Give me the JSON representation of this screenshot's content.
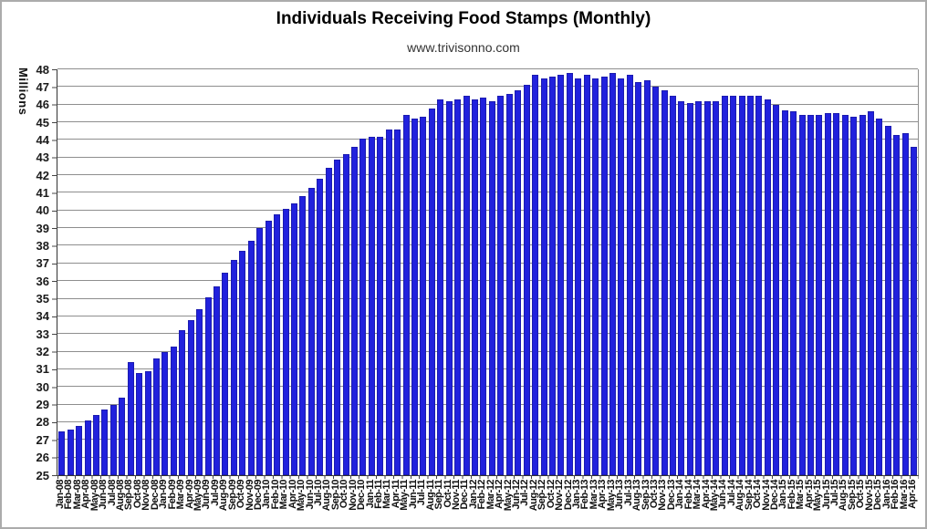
{
  "chart_data": {
    "type": "bar",
    "title": "Individuals Receiving Food Stamps (Monthly)",
    "subtitle": "www.trivisonno.com",
    "ylabel": "Millions",
    "xlabel": "",
    "ylim": [
      25,
      48
    ],
    "grid": true,
    "legend": "none",
    "bar_color": "#2121DD",
    "bar_border_color": "#1b1bb0",
    "gridline_color": "#8e8e8e",
    "axis_color": "#333333",
    "yticks": [
      25,
      26,
      27,
      28,
      29,
      30,
      31,
      32,
      33,
      34,
      35,
      36,
      37,
      38,
      39,
      40,
      41,
      42,
      43,
      44,
      45,
      46,
      47,
      48
    ],
    "categories": [
      "Jan-08",
      "Feb-08",
      "Mar-08",
      "Apr-08",
      "May-08",
      "Jun-08",
      "Jul-08",
      "Aug-08",
      "Sep-08",
      "Oct-08",
      "Nov-08",
      "Dec-08",
      "Jan-09",
      "Feb-09",
      "Mar-09",
      "Apr-09",
      "May-09",
      "Jun-09",
      "Jul-09",
      "Aug-09",
      "Sep-09",
      "Oct-09",
      "Nov-09",
      "Dec-09",
      "Jan-10",
      "Feb-10",
      "Mar-10",
      "Apr-10",
      "May-10",
      "Jun-10",
      "Jul-10",
      "Aug-10",
      "Sep-10",
      "Oct-10",
      "Nov-10",
      "Dec-10",
      "Jan-11",
      "Feb-11",
      "Mar-11",
      "Apr-11",
      "May-11",
      "Jun-11",
      "Jul-11",
      "Aug-11",
      "Sep-11",
      "Oct-11",
      "Nov-11",
      "Dec-11",
      "Jan-12",
      "Feb-12",
      "Mar-12",
      "Apr-12",
      "May-12",
      "Jun-12",
      "Jul-12",
      "Aug-12",
      "Sep-12",
      "Oct-12",
      "Nov-12",
      "Dec-12",
      "Jan-13",
      "Feb-13",
      "Mar-13",
      "Apr-13",
      "May-13",
      "Jun-13",
      "Jul-13",
      "Aug-13",
      "Sep-13",
      "Oct-13",
      "Nov-13",
      "Dec-13",
      "Jan-14",
      "Feb-14",
      "Mar-14",
      "Apr-14",
      "May-14",
      "Jun-14",
      "Jul-14",
      "Aug-14",
      "Sep-14",
      "Oct-14",
      "Nov-14",
      "Dec-14",
      "Jan-15",
      "Feb-15",
      "Mar-15",
      "Apr-15",
      "May-15",
      "Jun-15",
      "Jul-15",
      "Aug-15",
      "Sep-15",
      "Oct-15",
      "Nov-15",
      "Dec-15",
      "Jan-16",
      "Feb-16",
      "Mar-16",
      "Apr-16"
    ],
    "values": [
      27.5,
      27.6,
      27.8,
      28.1,
      28.4,
      28.7,
      29.0,
      29.4,
      31.4,
      30.8,
      30.9,
      31.6,
      32.0,
      32.3,
      33.2,
      33.8,
      34.4,
      35.1,
      35.7,
      36.5,
      37.2,
      37.7,
      38.3,
      39.0,
      39.4,
      39.8,
      40.1,
      40.4,
      40.8,
      41.3,
      41.8,
      42.4,
      42.9,
      43.2,
      43.6,
      44.1,
      44.2,
      44.2,
      44.6,
      44.6,
      45.4,
      45.2,
      45.3,
      45.8,
      46.3,
      46.2,
      46.3,
      46.5,
      46.3,
      46.4,
      46.2,
      46.5,
      46.6,
      46.8,
      47.1,
      47.7,
      47.5,
      47.6,
      47.7,
      47.8,
      47.5,
      47.7,
      47.5,
      47.6,
      47.8,
      47.5,
      47.7,
      47.3,
      47.4,
      47.0,
      46.8,
      46.5,
      46.2,
      46.1,
      46.2,
      46.2,
      46.2,
      46.5,
      46.5,
      46.5,
      46.5,
      46.5,
      46.3,
      46.0,
      45.7,
      45.6,
      45.4,
      45.4,
      45.4,
      45.5,
      45.5,
      45.4,
      45.3,
      45.4,
      45.6,
      45.2,
      44.8,
      44.3,
      44.4,
      43.6
    ]
  }
}
